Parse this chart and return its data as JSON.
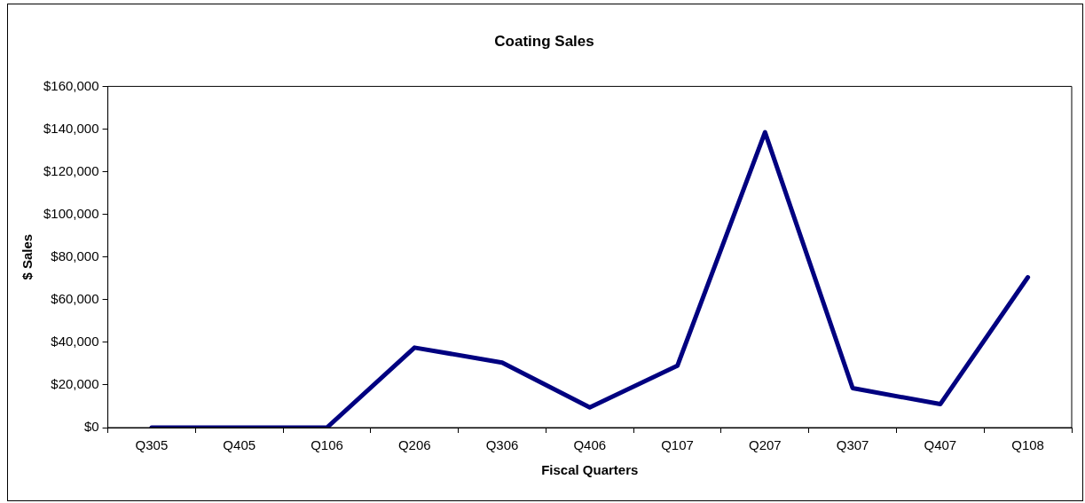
{
  "chart_data": {
    "type": "line",
    "title": "Coating Sales",
    "xlabel": "Fiscal Quarters",
    "ylabel": "$ Sales",
    "categories": [
      "Q305",
      "Q405",
      "Q106",
      "Q206",
      "Q306",
      "Q406",
      "Q107",
      "Q207",
      "Q307",
      "Q407",
      "Q108"
    ],
    "series": [
      {
        "color": "#000080",
        "values": [
          0,
          0,
          0,
          37500,
          30500,
          9500,
          29000,
          138500,
          18500,
          11000,
          70500
        ]
      }
    ],
    "ylim": [
      0,
      160000
    ],
    "yticks": [
      {
        "value": 0,
        "label": "$0"
      },
      {
        "value": 20000,
        "label": "$20,000"
      },
      {
        "value": 40000,
        "label": "$40,000"
      },
      {
        "value": 60000,
        "label": "$60,000"
      },
      {
        "value": 80000,
        "label": "$80,000"
      },
      {
        "value": 100000,
        "label": "$100,000"
      },
      {
        "value": 120000,
        "label": "$120,000"
      },
      {
        "value": 140000,
        "label": "$140,000"
      },
      {
        "value": 160000,
        "label": "$160,000"
      }
    ],
    "grid": false,
    "legend": false,
    "marker": "none",
    "line_style": "solid"
  }
}
